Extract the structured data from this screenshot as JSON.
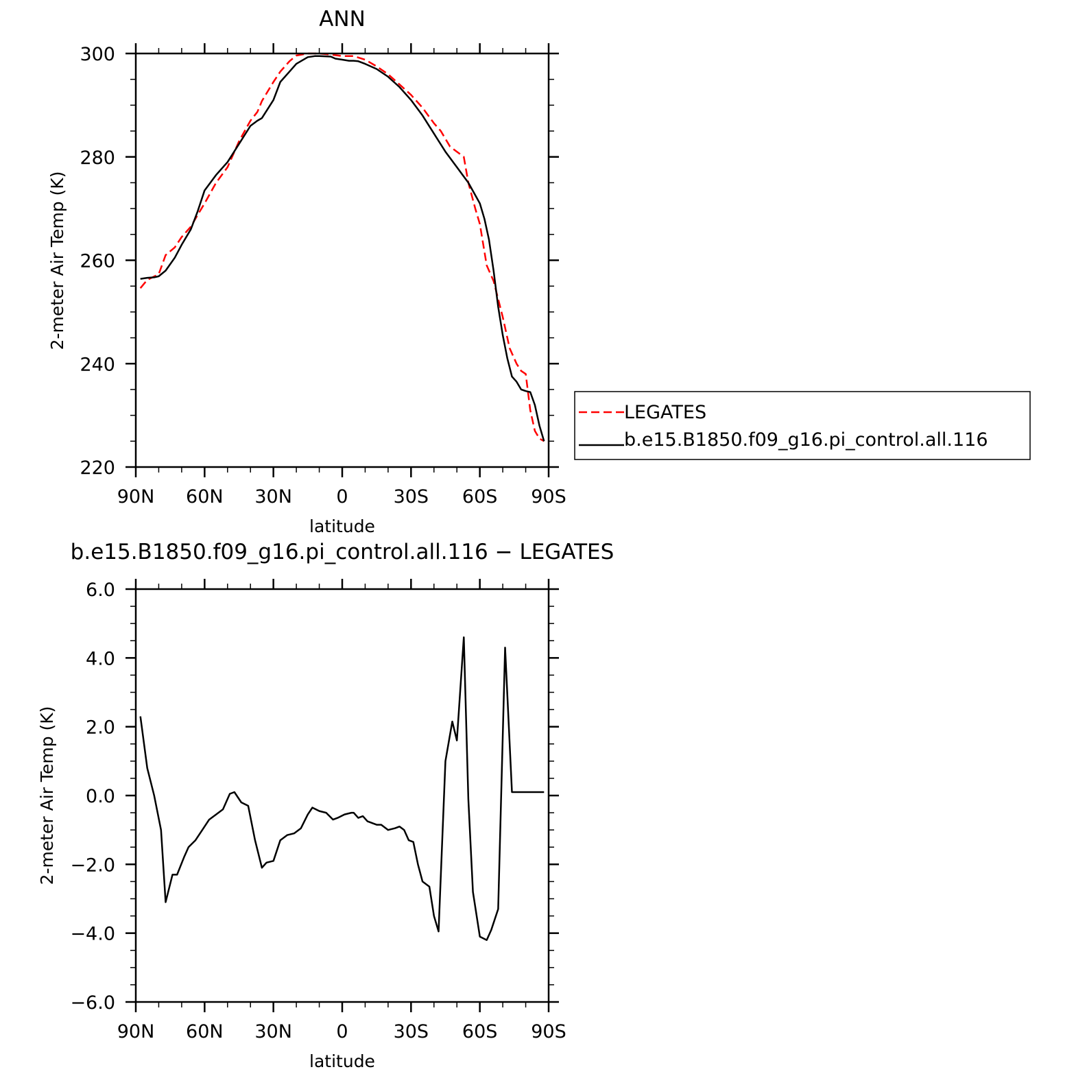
{
  "chart_data": [
    {
      "type": "line",
      "title": "ANN",
      "xlabel": "latitude",
      "ylabel": "2-meter Air Temp (K)",
      "xlim": [
        90,
        -90
      ],
      "ylim": [
        220,
        300
      ],
      "x_ticks": [
        90,
        60,
        30,
        0,
        -30,
        -60,
        -90
      ],
      "x_tick_labels": [
        "90N",
        "60N",
        "30N",
        "0",
        "30S",
        "60S",
        "90S"
      ],
      "y_ticks": [
        220,
        240,
        260,
        280,
        300
      ],
      "y_tick_labels": [
        "220",
        "240",
        "260",
        "280",
        "300"
      ],
      "legend": {
        "position": "right",
        "entries": [
          "LEGATES",
          "b.e15.B1850.f09_g16.pi_control.all.116"
        ]
      },
      "series": [
        {
          "name": "LEGATES",
          "color": "#ff0000",
          "dash": "dashed",
          "x": [
            88,
            85,
            80,
            77,
            73,
            70,
            66,
            63,
            60,
            55,
            50,
            45,
            40,
            37,
            35,
            30,
            27,
            23,
            20,
            15,
            10,
            5,
            0,
            -5,
            -10,
            -15,
            -20,
            -25,
            -30,
            -35,
            -40,
            -43,
            -47,
            -50,
            -53,
            -55,
            -58,
            -60,
            -63,
            -66,
            -70,
            -73,
            -76,
            -78,
            -80,
            -82,
            -84,
            -86,
            -88
          ],
          "y": [
            254.6,
            256.2,
            257.3,
            261.0,
            262.5,
            264.5,
            266.5,
            268.8,
            271.0,
            275.0,
            278.0,
            283.0,
            287.0,
            288.7,
            290.8,
            294.5,
            296.5,
            298.5,
            299.6,
            300.0,
            300.0,
            299.8,
            299.5,
            299.5,
            298.8,
            297.5,
            296.0,
            294.0,
            292.0,
            289.5,
            286.5,
            285.0,
            282.0,
            281.0,
            280.0,
            275.0,
            270.0,
            267.0,
            259.0,
            256.0,
            249.0,
            243.0,
            240.0,
            238.6,
            238.0,
            231.0,
            227.0,
            225.5,
            225.0
          ]
        },
        {
          "name": "b.e15.B1850.f09_g16.pi_control.all.116",
          "color": "#000000",
          "dash": "solid",
          "x": [
            88,
            85,
            82,
            80,
            77,
            73,
            70,
            66,
            63,
            60,
            55,
            50,
            45,
            40,
            37,
            35,
            30,
            27,
            23,
            20,
            15,
            12,
            10,
            5,
            3,
            0,
            -3,
            -5,
            -7,
            -10,
            -15,
            -20,
            -25,
            -30,
            -35,
            -40,
            -45,
            -50,
            -55,
            -60,
            -62,
            -64,
            -66,
            -68,
            -70,
            -72,
            -74,
            -76,
            -78,
            -80,
            -82,
            -84,
            -86,
            -88
          ],
          "y": [
            256.4,
            256.6,
            256.7,
            256.9,
            258.0,
            260.5,
            263.0,
            266.0,
            269.5,
            273.5,
            276.5,
            279.0,
            282.5,
            286.0,
            287.0,
            287.5,
            291.0,
            294.5,
            296.5,
            298.0,
            299.3,
            299.5,
            299.5,
            299.4,
            299.0,
            298.8,
            298.6,
            298.6,
            298.5,
            298.0,
            297.0,
            295.5,
            293.5,
            291.0,
            288.0,
            284.5,
            281.0,
            278.0,
            275.0,
            271.0,
            268.0,
            264.0,
            258.0,
            251.0,
            245.5,
            241.0,
            237.5,
            236.5,
            235.0,
            234.7,
            234.5,
            232.0,
            228.0,
            225.0
          ]
        }
      ]
    },
    {
      "type": "line",
      "title": "b.e15.B1850.f09_g16.pi_control.all.116 − LEGATES",
      "xlabel": "latitude",
      "ylabel": "2-meter Air Temp (K)",
      "xlim": [
        90,
        -90
      ],
      "ylim": [
        -6.0,
        6.0
      ],
      "x_ticks": [
        90,
        60,
        30,
        0,
        -30,
        -60,
        -90
      ],
      "x_tick_labels": [
        "90N",
        "60N",
        "30N",
        "0",
        "30S",
        "60S",
        "90S"
      ],
      "y_ticks": [
        -6,
        -4,
        -2,
        0,
        2,
        4,
        6
      ],
      "y_tick_labels": [
        "−6.0",
        "−4.0",
        "−2.0",
        "0.0",
        "2.0",
        "4.0",
        "6.0"
      ],
      "series": [
        {
          "color": "#000000",
          "dash": "solid",
          "x": [
            88,
            85,
            82,
            79,
            77,
            74,
            72,
            69,
            67,
            64,
            61,
            58,
            55,
            52,
            49,
            47,
            44,
            41,
            38,
            35,
            33,
            30,
            27,
            24,
            21,
            18,
            15,
            13,
            10,
            7,
            4,
            2,
            -1,
            -4,
            -5,
            -7,
            -9,
            -11,
            -13,
            -15,
            -17,
            -20,
            -23,
            -25,
            -27,
            -29,
            -31,
            -33,
            -35,
            -38,
            -40,
            -42,
            -45,
            -48,
            -50,
            -53,
            -55,
            -57,
            -60,
            -63,
            -65,
            -68,
            -71,
            -74,
            -77,
            -79,
            -81,
            -83,
            -85,
            -87,
            -88
          ],
          "y": [
            2.3,
            0.8,
            0.0,
            -1.0,
            -3.1,
            -2.3,
            -2.3,
            -1.8,
            -1.5,
            -1.3,
            -1.0,
            -0.7,
            -0.55,
            -0.4,
            0.05,
            0.1,
            -0.2,
            -0.3,
            -1.3,
            -2.1,
            -1.95,
            -1.9,
            -1.3,
            -1.15,
            -1.1,
            -0.95,
            -0.55,
            -0.35,
            -0.45,
            -0.5,
            -0.7,
            -0.65,
            -0.55,
            -0.5,
            -0.5,
            -0.65,
            -0.6,
            -0.75,
            -0.8,
            -0.85,
            -0.85,
            -1.0,
            -0.95,
            -0.9,
            -1.0,
            -1.3,
            -1.35,
            -2.0,
            -2.5,
            -2.65,
            -3.5,
            -3.95,
            1.0,
            2.15,
            1.6,
            4.6,
            -0.1,
            -2.8,
            -4.1,
            -4.2,
            -3.9,
            -3.3,
            4.3,
            0.1,
            0.1,
            0.1,
            0.1,
            0.1,
            0.1,
            0.1,
            0.1
          ]
        }
      ]
    }
  ]
}
